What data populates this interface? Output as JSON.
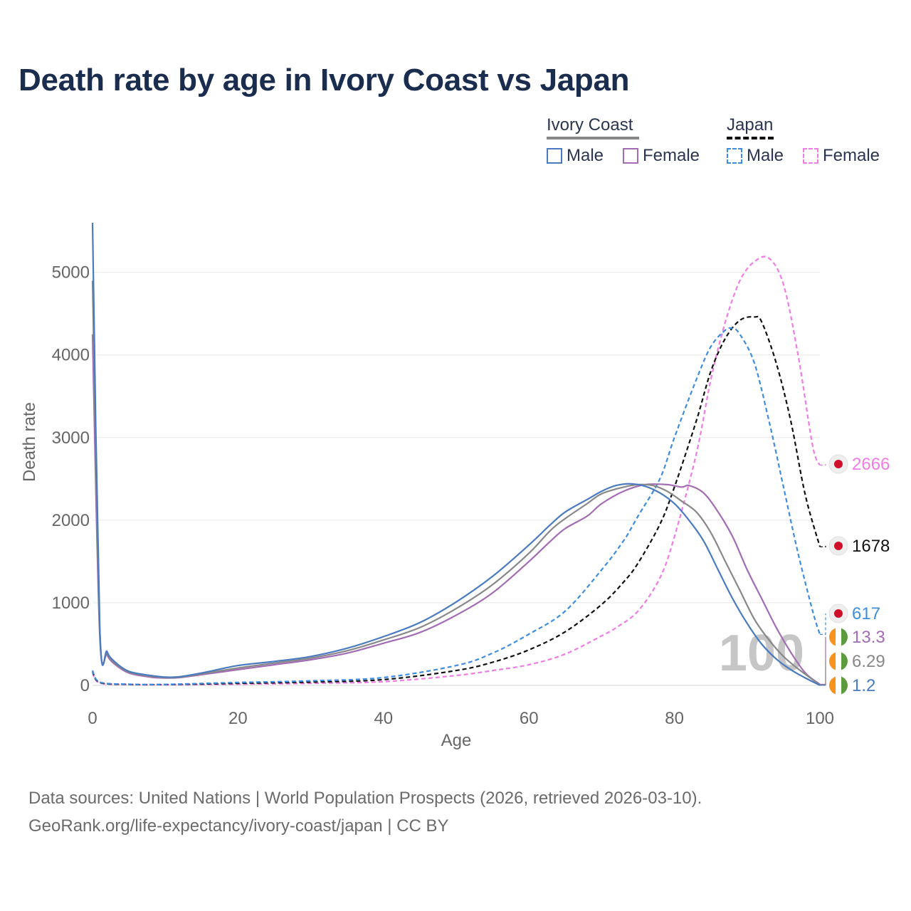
{
  "title": "Death rate by age in Ivory Coast vs Japan",
  "legend": {
    "groups": [
      {
        "name": "Ivory Coast",
        "line_color": "#888888",
        "dashed": false,
        "items": [
          {
            "label": "Male",
            "color": "#4a7bc0"
          },
          {
            "label": "Female",
            "color": "#a36cb5"
          }
        ]
      },
      {
        "name": "Japan",
        "line_color": "#111111",
        "dashed": true,
        "items": [
          {
            "label": "Male",
            "color": "#3f8de0"
          },
          {
            "label": "Female",
            "color": "#f07ce6"
          }
        ]
      }
    ]
  },
  "chart_data": {
    "type": "line",
    "xlabel": "Age",
    "ylabel": "Death rate",
    "xlim": [
      0,
      100
    ],
    "ylim": [
      0,
      5600
    ],
    "xticks": [
      0,
      20,
      40,
      60,
      80,
      100
    ],
    "yticks": [
      0,
      1000,
      2000,
      3000,
      4000,
      5000
    ],
    "grid": true,
    "annotation": "100",
    "series": [
      {
        "name": "Japan Female",
        "country": "Japan",
        "sex": "Female",
        "color": "#f07ce6",
        "dashed": true,
        "end_label": "2666",
        "end_value": 2666,
        "flag": "japan",
        "points": [
          [
            0,
            150
          ],
          [
            1,
            30
          ],
          [
            5,
            10
          ],
          [
            10,
            8
          ],
          [
            20,
            15
          ],
          [
            30,
            25
          ],
          [
            40,
            45
          ],
          [
            50,
            120
          ],
          [
            55,
            180
          ],
          [
            60,
            250
          ],
          [
            65,
            380
          ],
          [
            70,
            600
          ],
          [
            72,
            700
          ],
          [
            75,
            900
          ],
          [
            78,
            1300
          ],
          [
            80,
            1800
          ],
          [
            83,
            2800
          ],
          [
            85,
            3700
          ],
          [
            87,
            4400
          ],
          [
            89,
            4900
          ],
          [
            91,
            5130
          ],
          [
            93,
            5170
          ],
          [
            95,
            4850
          ],
          [
            97,
            4000
          ],
          [
            99,
            2900
          ],
          [
            100,
            2666
          ]
        ]
      },
      {
        "name": "Japan Both",
        "country": "Japan",
        "sex": "Both",
        "color": "#111111",
        "dashed": true,
        "end_label": "1678",
        "end_value": 1678,
        "flag": "japan",
        "points": [
          [
            0,
            170
          ],
          [
            1,
            35
          ],
          [
            5,
            12
          ],
          [
            10,
            10
          ],
          [
            20,
            25
          ],
          [
            30,
            40
          ],
          [
            40,
            70
          ],
          [
            50,
            180
          ],
          [
            55,
            280
          ],
          [
            60,
            430
          ],
          [
            65,
            650
          ],
          [
            70,
            980
          ],
          [
            73,
            1250
          ],
          [
            75,
            1480
          ],
          [
            78,
            1950
          ],
          [
            80,
            2400
          ],
          [
            83,
            3200
          ],
          [
            85,
            3800
          ],
          [
            87,
            4200
          ],
          [
            89,
            4420
          ],
          [
            91,
            4460
          ],
          [
            92,
            4400
          ],
          [
            94,
            3900
          ],
          [
            96,
            3200
          ],
          [
            98,
            2300
          ],
          [
            100,
            1678
          ]
        ]
      },
      {
        "name": "Japan Male",
        "country": "Japan",
        "sex": "Male",
        "color": "#3f8de0",
        "dashed": true,
        "end_label": "617",
        "end_value": 617,
        "flag": "japan",
        "points": [
          [
            0,
            180
          ],
          [
            1,
            40
          ],
          [
            5,
            14
          ],
          [
            10,
            12
          ],
          [
            20,
            35
          ],
          [
            30,
            55
          ],
          [
            40,
            95
          ],
          [
            50,
            240
          ],
          [
            55,
            390
          ],
          [
            60,
            620
          ],
          [
            65,
            900
          ],
          [
            70,
            1400
          ],
          [
            73,
            1750
          ],
          [
            75,
            2050
          ],
          [
            78,
            2500
          ],
          [
            80,
            3000
          ],
          [
            83,
            3700
          ],
          [
            85,
            4100
          ],
          [
            87,
            4300
          ],
          [
            88,
            4320
          ],
          [
            89,
            4250
          ],
          [
            91,
            3900
          ],
          [
            93,
            3200
          ],
          [
            95,
            2400
          ],
          [
            97,
            1600
          ],
          [
            99,
            900
          ],
          [
            100,
            617
          ]
        ]
      },
      {
        "name": "Ivory Coast Female",
        "country": "Ivory Coast",
        "sex": "Female",
        "color": "#a36cb5",
        "dashed": false,
        "end_label": "13.3",
        "end_value": 13.3,
        "flag": "ivory-coast",
        "points": [
          [
            0,
            4250
          ],
          [
            1,
            600
          ],
          [
            2,
            370
          ],
          [
            3,
            260
          ],
          [
            5,
            150
          ],
          [
            8,
            100
          ],
          [
            10,
            90
          ],
          [
            12,
            95
          ],
          [
            15,
            130
          ],
          [
            20,
            190
          ],
          [
            25,
            250
          ],
          [
            30,
            310
          ],
          [
            35,
            390
          ],
          [
            40,
            510
          ],
          [
            45,
            640
          ],
          [
            50,
            850
          ],
          [
            55,
            1120
          ],
          [
            60,
            1500
          ],
          [
            63,
            1750
          ],
          [
            65,
            1900
          ],
          [
            68,
            2050
          ],
          [
            70,
            2200
          ],
          [
            73,
            2350
          ],
          [
            76,
            2430
          ],
          [
            79,
            2430
          ],
          [
            81,
            2400
          ],
          [
            82,
            2420
          ],
          [
            84,
            2330
          ],
          [
            86,
            2100
          ],
          [
            88,
            1800
          ],
          [
            90,
            1400
          ],
          [
            92,
            1050
          ],
          [
            94,
            700
          ],
          [
            96,
            400
          ],
          [
            98,
            150
          ],
          [
            100,
            13.3
          ]
        ]
      },
      {
        "name": "Ivory Coast Both",
        "country": "Ivory Coast",
        "sex": "Both",
        "color": "#888888",
        "dashed": false,
        "end_label": "6.29",
        "end_value": 6.29,
        "flag": "ivory-coast",
        "points": [
          [
            0,
            4900
          ],
          [
            1,
            650
          ],
          [
            2,
            390
          ],
          [
            3,
            275
          ],
          [
            5,
            160
          ],
          [
            8,
            110
          ],
          [
            10,
            95
          ],
          [
            12,
            100
          ],
          [
            15,
            140
          ],
          [
            20,
            210
          ],
          [
            25,
            270
          ],
          [
            30,
            330
          ],
          [
            35,
            420
          ],
          [
            40,
            550
          ],
          [
            45,
            700
          ],
          [
            50,
            930
          ],
          [
            55,
            1220
          ],
          [
            60,
            1600
          ],
          [
            63,
            1880
          ],
          [
            65,
            2020
          ],
          [
            68,
            2200
          ],
          [
            70,
            2320
          ],
          [
            73,
            2400
          ],
          [
            75,
            2430
          ],
          [
            77,
            2420
          ],
          [
            79,
            2350
          ],
          [
            81,
            2230
          ],
          [
            83,
            2100
          ],
          [
            85,
            1850
          ],
          [
            87,
            1500
          ],
          [
            89,
            1150
          ],
          [
            91,
            800
          ],
          [
            93,
            550
          ],
          [
            95,
            350
          ],
          [
            97,
            200
          ],
          [
            100,
            6.29
          ]
        ]
      },
      {
        "name": "Ivory Coast Male",
        "country": "Ivory Coast",
        "sex": "Male",
        "color": "#4a7bc0",
        "dashed": false,
        "end_label": "1.2",
        "end_value": 1.2,
        "flag": "ivory-coast",
        "points": [
          [
            0,
            5600
          ],
          [
            1,
            700
          ],
          [
            2,
            410
          ],
          [
            3,
            290
          ],
          [
            5,
            170
          ],
          [
            8,
            120
          ],
          [
            10,
            100
          ],
          [
            12,
            105
          ],
          [
            15,
            150
          ],
          [
            20,
            240
          ],
          [
            25,
            290
          ],
          [
            30,
            350
          ],
          [
            35,
            450
          ],
          [
            40,
            590
          ],
          [
            45,
            760
          ],
          [
            50,
            1010
          ],
          [
            55,
            1320
          ],
          [
            60,
            1700
          ],
          [
            63,
            1950
          ],
          [
            65,
            2100
          ],
          [
            68,
            2250
          ],
          [
            70,
            2350
          ],
          [
            72,
            2420
          ],
          [
            74,
            2440
          ],
          [
            76,
            2410
          ],
          [
            78,
            2330
          ],
          [
            80,
            2200
          ],
          [
            82,
            2000
          ],
          [
            84,
            1750
          ],
          [
            86,
            1400
          ],
          [
            88,
            1050
          ],
          [
            90,
            750
          ],
          [
            92,
            500
          ],
          [
            94,
            320
          ],
          [
            96,
            190
          ],
          [
            98,
            90
          ],
          [
            100,
            1.2
          ]
        ]
      }
    ]
  },
  "footer": {
    "line1": "Data sources: United Nations | World Population Prospects (2026, retrieved 2026-03-10).",
    "line2": "GeoRank.org/life-expectancy/ivory-coast/japan | CC BY"
  }
}
